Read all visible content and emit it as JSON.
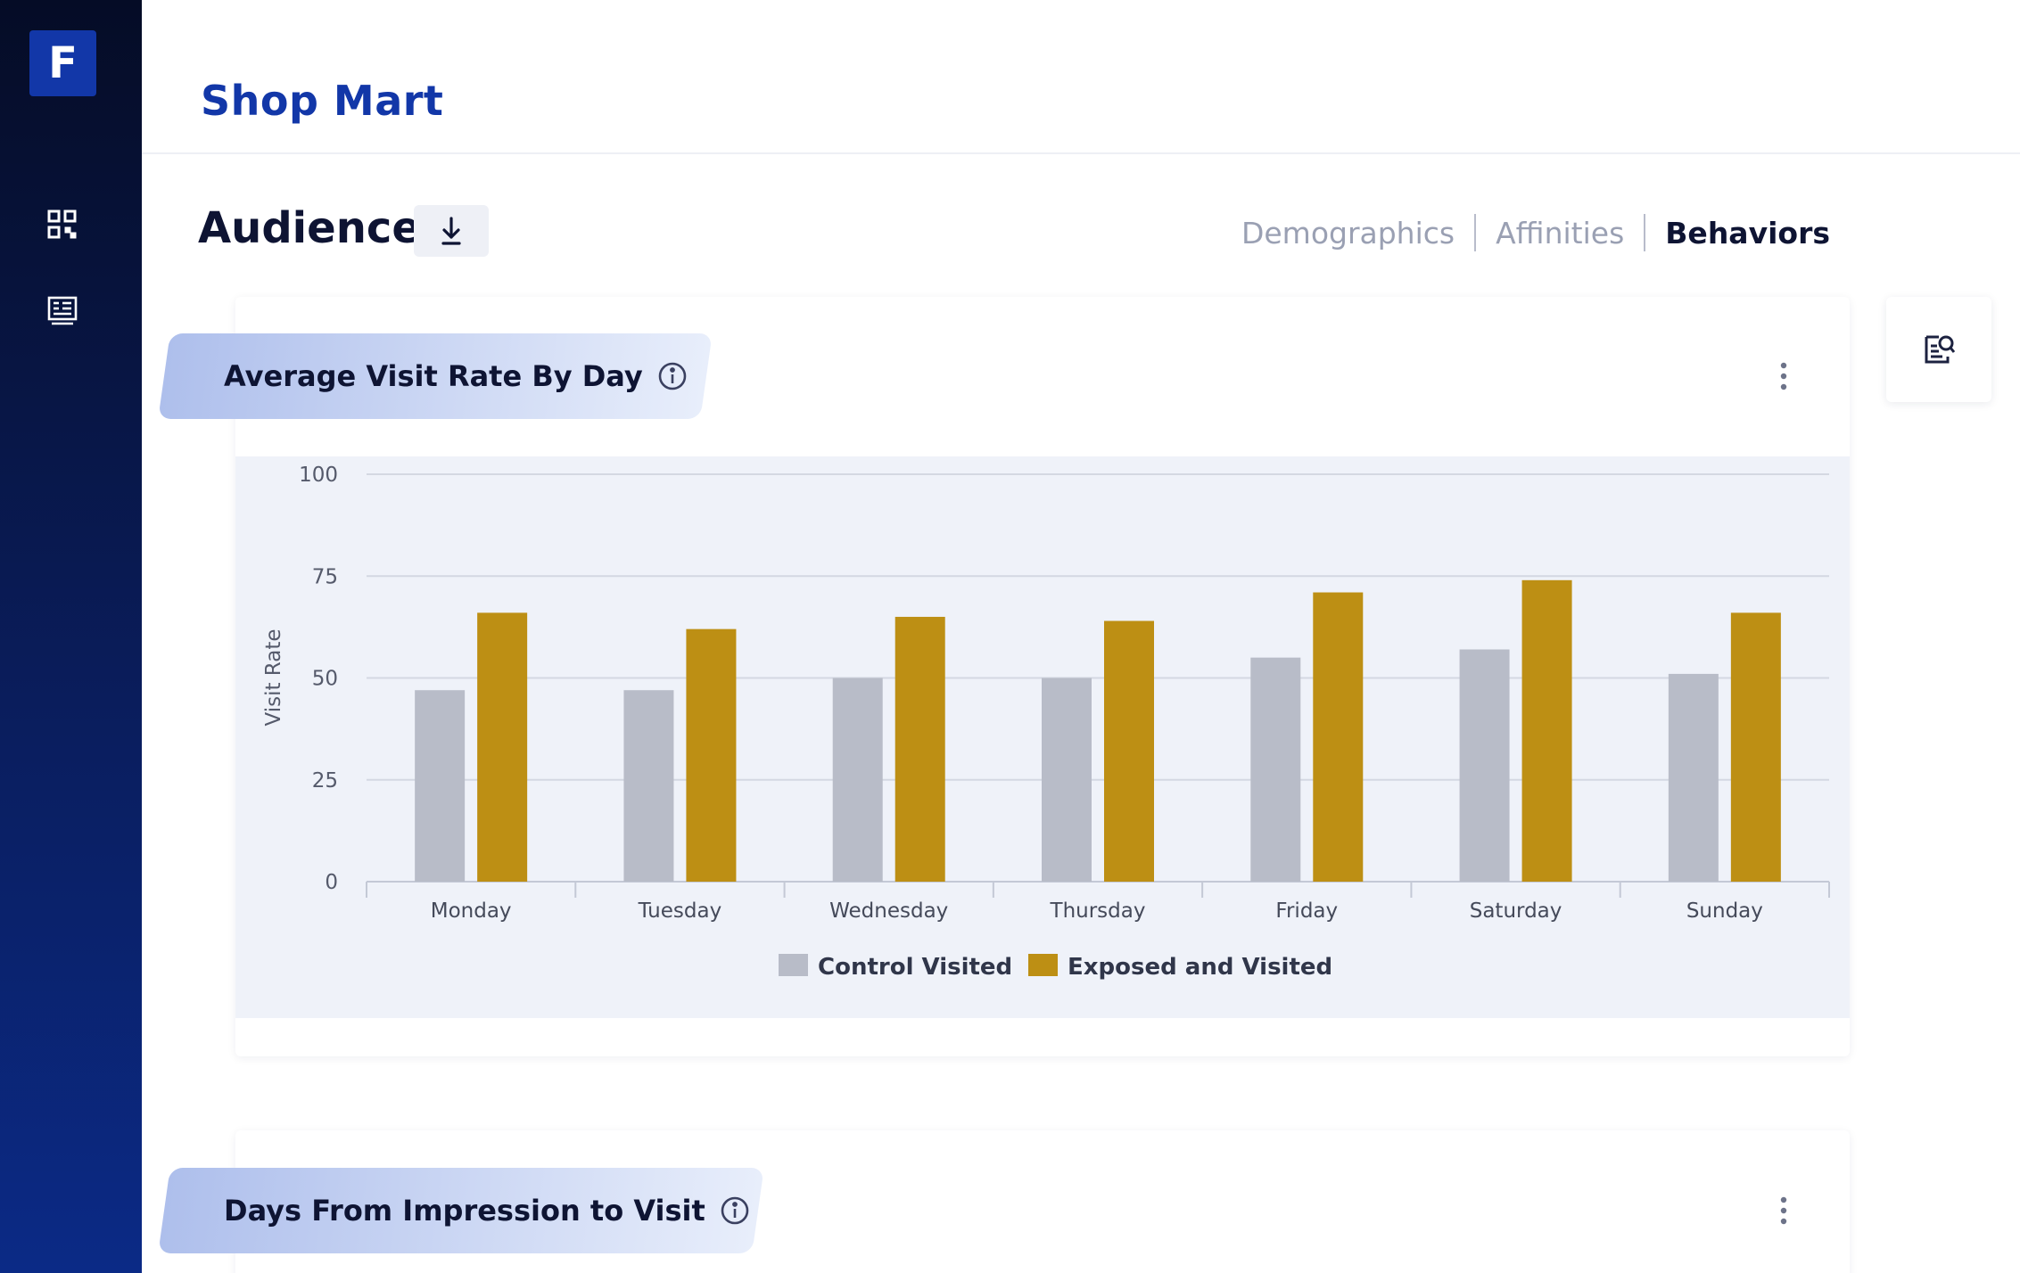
{
  "sidebar": {
    "logo_letter": "F",
    "items": [
      {
        "icon": "dashboard-grid-icon"
      },
      {
        "icon": "report-list-icon"
      }
    ]
  },
  "header": {
    "title": "Shop Mart"
  },
  "section": {
    "title": "Audience",
    "download_icon": "download-icon",
    "tabs": [
      {
        "label": "Demographics",
        "active": false
      },
      {
        "label": "Affinities",
        "active": false
      },
      {
        "label": "Behaviors",
        "active": true
      }
    ]
  },
  "cards": [
    {
      "title": "Average Visit Rate By Day"
    },
    {
      "title": "Days From Impression to Visit"
    }
  ],
  "side_panel": {
    "icon": "document-search-icon"
  },
  "colors": {
    "control": "#b8bcc8",
    "exposed": "#bd8f14",
    "brand": "#1237a8"
  },
  "chart_data": {
    "type": "bar",
    "title": "",
    "xlabel": "",
    "ylabel": "Visit Rate",
    "ylim": [
      0,
      100
    ],
    "yticks": [
      0,
      25,
      50,
      75,
      100
    ],
    "grid": true,
    "legend": "bottom-center",
    "categories": [
      "Monday",
      "Tuesday",
      "Wednesday",
      "Thursday",
      "Friday",
      "Saturday",
      "Sunday"
    ],
    "series": [
      {
        "name": "Control Visited",
        "values": [
          47,
          47,
          50,
          50,
          55,
          57,
          51
        ]
      },
      {
        "name": "Exposed and Visited",
        "values": [
          66,
          62,
          65,
          64,
          71,
          74,
          66
        ]
      }
    ]
  }
}
